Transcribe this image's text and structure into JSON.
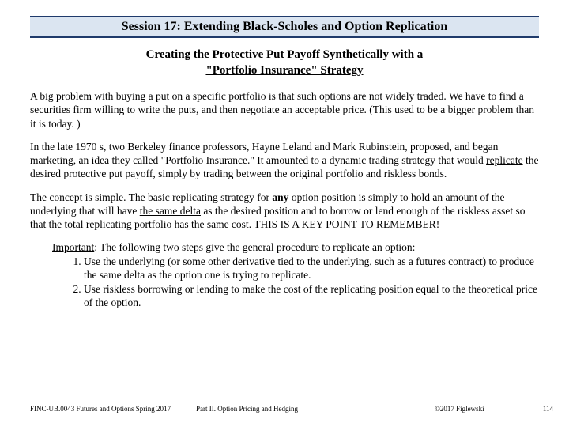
{
  "header": {
    "title": "Session 17:  Extending Black-Scholes and Option Replication",
    "band_bg": "#dbe5f1",
    "band_border": "#1f3a6b"
  },
  "subtitle": {
    "line1": "Creating the Protective Put Payoff Synthetically with a",
    "line2": "\"Portfolio Insurance\" Strategy"
  },
  "paragraphs": {
    "p1": "A big problem with buying a put on a specific portfolio is that such options are not widely traded.  We have to find a securities firm willing to write the puts, and then negotiate an acceptable price.  (This used to be a bigger problem than it is today. )",
    "p2a": "In the late 1970 s, two Berkeley finance professors, Hayne Leland and Mark Rubinstein, proposed, and began marketing, an idea they called \"Portfolio Insurance.\" It amounted to a dynamic trading strategy that would ",
    "p2_replicate": "replicate",
    "p2b": " the desired protective put payoff, simply by trading between the original portfolio and riskless bonds.",
    "p3a": "The concept is simple.  The basic replicating strategy ",
    "p3_forany": "for any",
    "p3b": " option position is simply to hold an amount of the underlying that will have ",
    "p3_samedelta": "the same delta",
    "p3c": " as the desired position and to borrow or lend enough of the riskless asset so that the total replicating portfolio has ",
    "p3_samecost": "the same cost",
    "p3d": ".  THIS IS A KEY POINT TO REMEMBER!",
    "imp_label": "Important",
    "imp_intro": ":  The following two steps give the general procedure to replicate an option:",
    "imp_item1": "Use the underlying (or some other derivative tied to the underlying, such as a futures contract) to produce the same delta as the option one is trying to replicate.",
    "imp_item2": "Use riskless borrowing or lending to make the cost of the replicating position equal to the theoretical price of the option."
  },
  "footer": {
    "left": "FINC-UB.0043 Futures and Options Spring 2017",
    "center": "Part II. Option Pricing and Hedging",
    "right": "©2017 Figlewski",
    "page": "114"
  }
}
